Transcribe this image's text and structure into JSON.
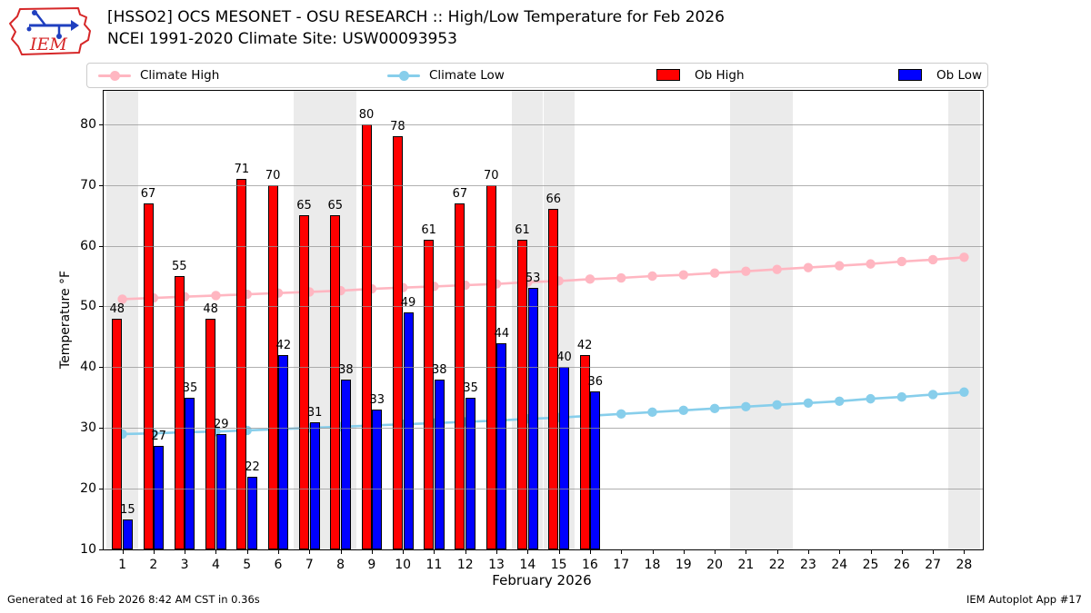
{
  "header": {
    "title": "[HSSO2] OCS MESONET - OSU RESEARCH :: High/Low Temperature for Feb 2026",
    "subtitle": "NCEI 1991-2020 Climate Site: USW00093953"
  },
  "legend": {
    "items": [
      {
        "label": "Climate High",
        "type": "line",
        "color": "#ffb6c1"
      },
      {
        "label": "Climate Low",
        "type": "line",
        "color": "#87ceeb"
      },
      {
        "label": "Ob High",
        "type": "bar",
        "color": "#ff0000"
      },
      {
        "label": "Ob Low",
        "type": "bar",
        "color": "#0000ff"
      }
    ]
  },
  "footer": {
    "left": "Generated at 16 Feb 2026 8:42 AM CST in 0.36s",
    "right": "IEM Autoplot App #17"
  },
  "colors": {
    "ob_high": "#ff0000",
    "ob_low": "#0000ff",
    "climate_high": "#ffb6c1",
    "climate_low": "#87ceeb",
    "weekend_band": "#ebebeb",
    "gridline": "#969696",
    "logo_red": "#d62728",
    "logo_blue": "#1f3fbf"
  },
  "chart_data": {
    "type": "bar",
    "title": "[HSSO2] OCS MESONET - OSU RESEARCH :: High/Low Temperature for Feb 2026",
    "subtitle": "NCEI 1991-2020 Climate Site: USW00093953",
    "xlabel": "February 2026",
    "ylabel": "Temperature °F",
    "xlim": [
      0.4,
      28.6
    ],
    "ylim": [
      10,
      85.5
    ],
    "xticks": [
      1,
      2,
      3,
      4,
      5,
      6,
      7,
      8,
      9,
      10,
      11,
      12,
      13,
      14,
      15,
      16,
      17,
      18,
      19,
      20,
      21,
      22,
      23,
      24,
      25,
      26,
      27,
      28
    ],
    "yticks": [
      10,
      20,
      30,
      40,
      50,
      60,
      70,
      80
    ],
    "grid": true,
    "weekend_shaded_days": [
      1,
      7,
      8,
      14,
      15,
      21,
      22,
      28
    ],
    "series": [
      {
        "name": "Ob High",
        "type": "bar",
        "color": "#ff0000",
        "days": [
          1,
          2,
          3,
          4,
          5,
          6,
          7,
          8,
          9,
          10,
          11,
          12,
          13,
          14,
          15,
          16
        ],
        "values": [
          48,
          67,
          55,
          48,
          71,
          70,
          65,
          65,
          80,
          78,
          61,
          67,
          70,
          61,
          66,
          42
        ]
      },
      {
        "name": "Ob Low",
        "type": "bar",
        "color": "#0000ff",
        "days": [
          1,
          2,
          3,
          4,
          5,
          6,
          7,
          8,
          9,
          10,
          11,
          12,
          13,
          14,
          15,
          16
        ],
        "values": [
          15,
          27,
          35,
          29,
          22,
          42,
          31,
          38,
          33,
          49,
          38,
          35,
          44,
          53,
          40,
          36
        ]
      },
      {
        "name": "Climate High",
        "type": "line",
        "color": "#ffb6c1",
        "days": [
          1,
          2,
          3,
          4,
          5,
          6,
          7,
          8,
          9,
          10,
          11,
          12,
          13,
          14,
          15,
          16,
          17,
          18,
          19,
          20,
          21,
          22,
          23,
          24,
          25,
          26,
          27,
          28
        ],
        "values": [
          51.2,
          51.4,
          51.6,
          51.8,
          52.0,
          52.2,
          52.4,
          52.6,
          52.9,
          53.1,
          53.3,
          53.5,
          53.7,
          54.0,
          54.2,
          54.5,
          54.7,
          55.0,
          55.2,
          55.5,
          55.8,
          56.1,
          56.4,
          56.7,
          57.0,
          57.4,
          57.7,
          58.1
        ]
      },
      {
        "name": "Climate Low",
        "type": "line",
        "color": "#87ceeb",
        "days": [
          1,
          2,
          3,
          4,
          5,
          6,
          7,
          8,
          9,
          10,
          11,
          12,
          13,
          14,
          15,
          16,
          17,
          18,
          19,
          20,
          21,
          22,
          23,
          24,
          25,
          26,
          27,
          28
        ],
        "values": [
          29.0,
          29.1,
          29.3,
          29.4,
          29.6,
          29.8,
          30.0,
          30.2,
          30.4,
          30.6,
          30.8,
          31.0,
          31.2,
          31.5,
          31.7,
          32.0,
          32.3,
          32.6,
          32.9,
          33.2,
          33.5,
          33.8,
          34.1,
          34.4,
          34.8,
          35.1,
          35.5,
          35.9
        ]
      }
    ]
  }
}
